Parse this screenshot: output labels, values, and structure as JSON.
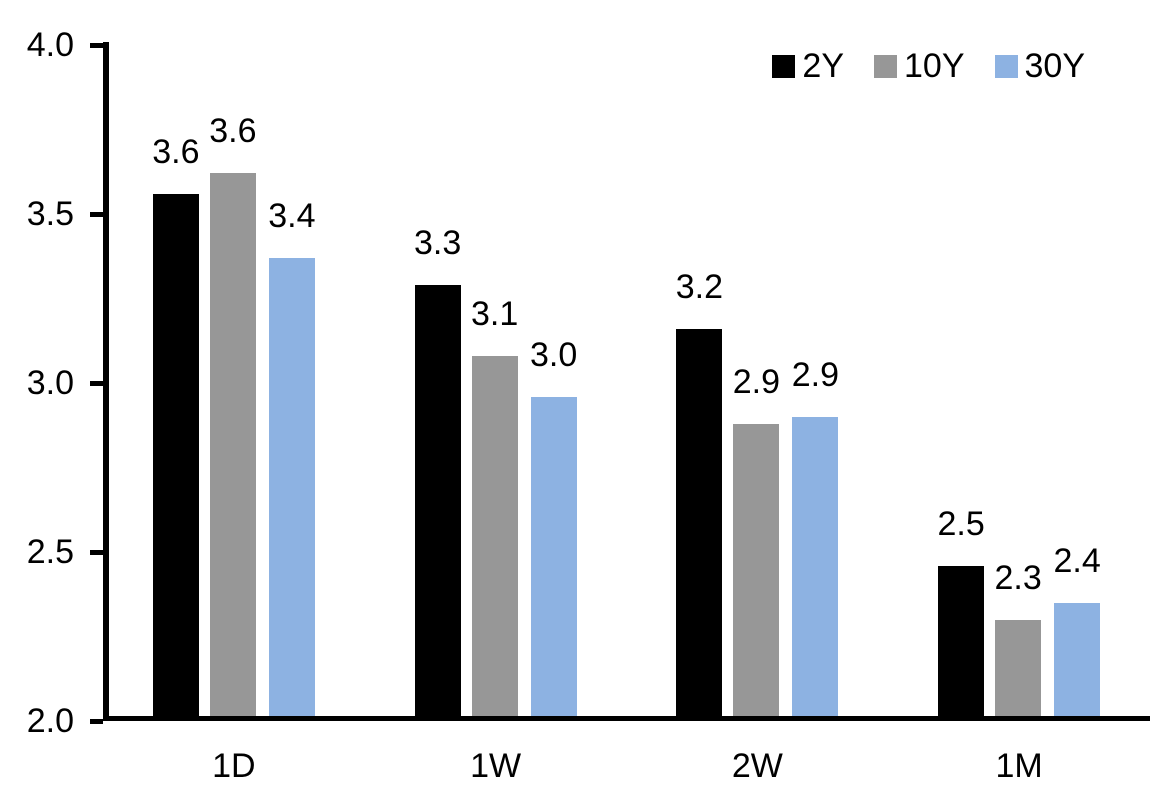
{
  "chart_data": {
    "type": "bar",
    "title": "",
    "xlabel": "",
    "ylabel": "",
    "categories": [
      "1D",
      "1W",
      "2W",
      "1M"
    ],
    "series": [
      {
        "name": "2Y",
        "color": "#000000",
        "values": [
          3.56,
          3.29,
          3.16,
          2.46
        ],
        "labels": [
          "3.6",
          "3.3",
          "3.2",
          "2.5"
        ]
      },
      {
        "name": "10Y",
        "color": "#979797",
        "values": [
          3.62,
          3.08,
          2.88,
          2.3
        ],
        "labels": [
          "3.6",
          "3.1",
          "2.9",
          "2.3"
        ]
      },
      {
        "name": "30Y",
        "color": "#8DB2E2",
        "values": [
          3.37,
          2.96,
          2.9,
          2.35
        ],
        "labels": [
          "3.4",
          "3.0",
          "2.9",
          "2.4"
        ]
      }
    ],
    "ylim": [
      2.0,
      4.0
    ],
    "ytick_step": 0.5,
    "yticks": [
      {
        "value": 4.0,
        "label": "4.0"
      },
      {
        "value": 3.5,
        "label": "3.5"
      },
      {
        "value": 3.0,
        "label": "3.0"
      },
      {
        "value": 2.5,
        "label": "2.5"
      },
      {
        "value": 2.0,
        "label": "2.0"
      }
    ],
    "grid": false,
    "legend_position": "top-right",
    "axis_color": "#000000",
    "text_color": "#000000",
    "background_color": "#FFFFFF"
  }
}
